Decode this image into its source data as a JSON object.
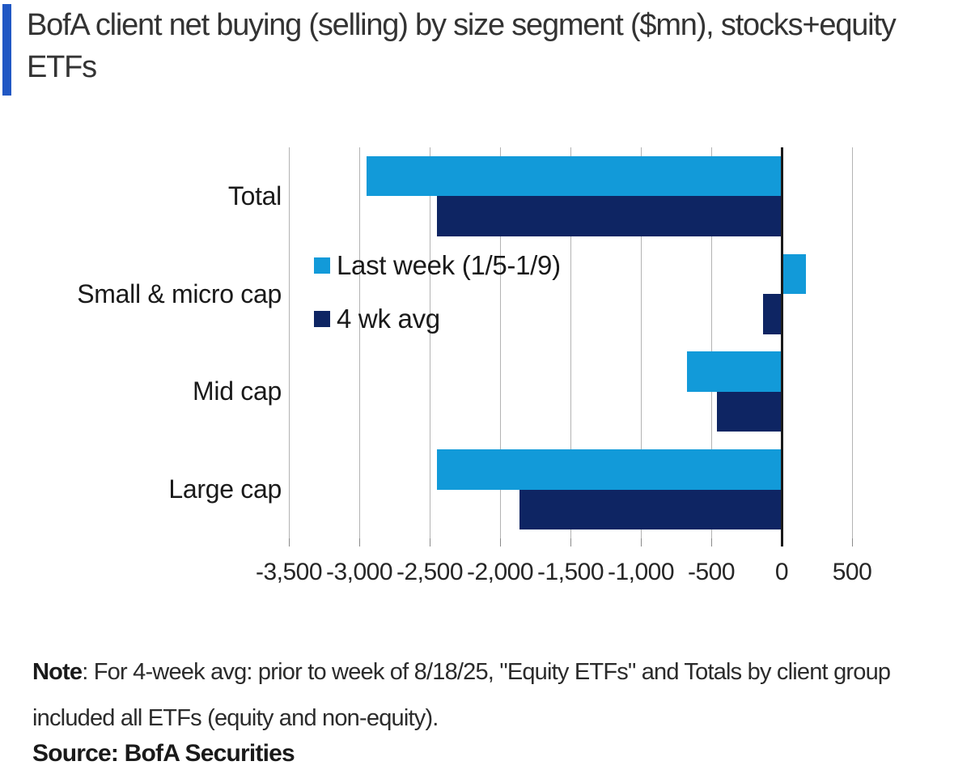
{
  "title": {
    "text": "BofA client net buying (selling) by size segment ($mn), stocks+equity ETFs"
  },
  "chart_data": {
    "type": "bar",
    "orientation": "horizontal",
    "categories": [
      "Total",
      "Small & micro cap",
      "Mid cap",
      "Large cap"
    ],
    "series": [
      {
        "name": "Last week (1/5-1/9)",
        "color": "#129AD9",
        "values": [
          -2950,
          175,
          -675,
          -2450
        ]
      },
      {
        "name": "4 wk avg",
        "color": "#0E2563",
        "values": [
          -2450,
          -130,
          -460,
          -1860
        ]
      }
    ],
    "xlim": [
      -3500,
      500
    ],
    "xticks": [
      -3500,
      -3000,
      -2500,
      -2000,
      -1500,
      -1000,
      -500,
      0,
      500
    ],
    "xtick_labels": [
      "-3,500",
      "-3,000",
      "-2,500",
      "-2,000",
      "-1,500",
      "-1,000",
      "-500",
      "0",
      "500"
    ],
    "grid": true,
    "legend_position": "inside-left",
    "xlabel": "",
    "ylabel": ""
  },
  "note": {
    "label": "Note",
    "text": ": For 4-week avg: prior to week of 8/18/25, \"Equity ETFs\" and Totals by client group included all ETFs (equity and non-equity)."
  },
  "source": {
    "text": "Source: BofA Securities"
  },
  "colors": {
    "accent_bar": "#2158C4",
    "light_blue": "#129AD9",
    "navy": "#0E2563",
    "gridline": "#b3b3b3",
    "zero_axis": "#1a1a1a",
    "text": "#333333"
  }
}
